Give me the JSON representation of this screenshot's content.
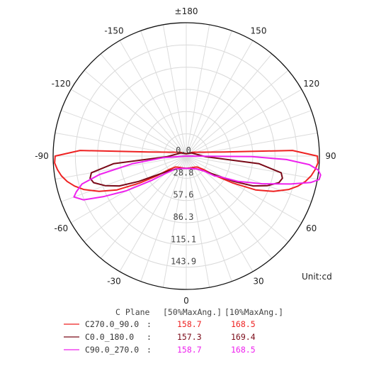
{
  "chart_data": {
    "type": "polar",
    "unit_label": "Unit:cd",
    "radial_ticks": [
      "0.0",
      "28.8",
      "57.6",
      "86.3",
      "115.1",
      "143.9"
    ],
    "radial_max": 172.7,
    "angle_labels": [
      {
        "angle": 180,
        "text": "±180"
      },
      {
        "angle": -150,
        "text": "-150"
      },
      {
        "angle": 150,
        "text": "150"
      },
      {
        "angle": -120,
        "text": "-120"
      },
      {
        "angle": 120,
        "text": "120"
      },
      {
        "angle": -90,
        "text": "-90"
      },
      {
        "angle": 90,
        "text": "90"
      },
      {
        "angle": -60,
        "text": "-60"
      },
      {
        "angle": 60,
        "text": "60"
      },
      {
        "angle": -30,
        "text": "-30"
      },
      {
        "angle": 30,
        "text": "30"
      },
      {
        "angle": 0,
        "text": "0"
      }
    ],
    "table": {
      "headers": [
        "C Plane",
        "[50%MaxAng.]",
        "[10%MaxAng.]"
      ],
      "rows": [
        {
          "name": "C270.0_90.0",
          "sep": ":",
          "v50": "158.7",
          "v10": "168.5",
          "color": "#ee2222"
        },
        {
          "name": "C0.0_180.0",
          "sep": ":",
          "v50": "157.3",
          "v10": "169.4",
          "color": "#7a0a18"
        },
        {
          "name": "C90.0_270.0",
          "sep": ":",
          "v50": "158.7",
          "v10": "168.5",
          "color": "#ee22ee"
        }
      ]
    },
    "series": [
      {
        "color": "#ee2222",
        "points": [
          [
            -96,
            50
          ],
          [
            -93,
            138
          ],
          [
            -90,
            170
          ],
          [
            -87,
            171
          ],
          [
            -84,
            168
          ],
          [
            -81,
            164
          ],
          [
            -78,
            158
          ],
          [
            -75,
            150
          ],
          [
            -72,
            140
          ],
          [
            -68,
            122
          ],
          [
            -64,
            100
          ],
          [
            -60,
            70
          ],
          [
            -56,
            45
          ],
          [
            -52,
            28
          ],
          [
            -45,
            20
          ],
          [
            -30,
            17
          ],
          [
            -15,
            16
          ],
          [
            0,
            16
          ],
          [
            15,
            16
          ],
          [
            30,
            17
          ],
          [
            45,
            20
          ],
          [
            52,
            28
          ],
          [
            56,
            45
          ],
          [
            60,
            70
          ],
          [
            64,
            100
          ],
          [
            68,
            122
          ],
          [
            72,
            140
          ],
          [
            75,
            150
          ],
          [
            78,
            158
          ],
          [
            81,
            164
          ],
          [
            84,
            168
          ],
          [
            87,
            171
          ],
          [
            90,
            170
          ],
          [
            93,
            138
          ],
          [
            96,
            50
          ],
          [
            120,
            10
          ],
          [
            180,
            3
          ],
          [
            -120,
            10
          ],
          [
            -96,
            50
          ]
        ]
      },
      {
        "color": "#7a0a18",
        "points": [
          [
            -88,
            25
          ],
          [
            -84,
            95
          ],
          [
            -80,
            125
          ],
          [
            -77,
            128
          ],
          [
            -74,
            125
          ],
          [
            -70,
            112
          ],
          [
            -66,
            95
          ],
          [
            -62,
            70
          ],
          [
            -58,
            48
          ],
          [
            -50,
            30
          ],
          [
            -40,
            22
          ],
          [
            -20,
            17
          ],
          [
            0,
            16
          ],
          [
            20,
            17
          ],
          [
            40,
            22
          ],
          [
            50,
            30
          ],
          [
            58,
            48
          ],
          [
            62,
            70
          ],
          [
            66,
            95
          ],
          [
            70,
            112
          ],
          [
            74,
            125
          ],
          [
            77,
            128
          ],
          [
            80,
            125
          ],
          [
            84,
            95
          ],
          [
            88,
            25
          ],
          [
            120,
            8
          ],
          [
            180,
            3
          ],
          [
            -120,
            8
          ],
          [
            -88,
            25
          ]
        ]
      },
      {
        "color": "#ee22ee",
        "points": [
          [
            -90,
            0
          ],
          [
            -86,
            30
          ],
          [
            -82,
            70
          ],
          [
            -78,
            115
          ],
          [
            -75,
            140
          ],
          [
            -72,
            150
          ],
          [
            -70,
            155
          ],
          [
            -67,
            145
          ],
          [
            -64,
            120
          ],
          [
            -60,
            90
          ],
          [
            -55,
            55
          ],
          [
            -50,
            35
          ],
          [
            -40,
            22
          ],
          [
            -20,
            17
          ],
          [
            0,
            16
          ],
          [
            20,
            17
          ],
          [
            40,
            22
          ],
          [
            50,
            30
          ],
          [
            55,
            45
          ],
          [
            58,
            50
          ],
          [
            64,
            75
          ],
          [
            70,
            105
          ],
          [
            75,
            140
          ],
          [
            78,
            165
          ],
          [
            80,
            175
          ],
          [
            82,
            176
          ],
          [
            84,
            172
          ],
          [
            86,
            160
          ],
          [
            88,
            130
          ],
          [
            89.5,
            85
          ],
          [
            90,
            0
          ],
          [
            -90,
            0
          ]
        ]
      }
    ]
  }
}
